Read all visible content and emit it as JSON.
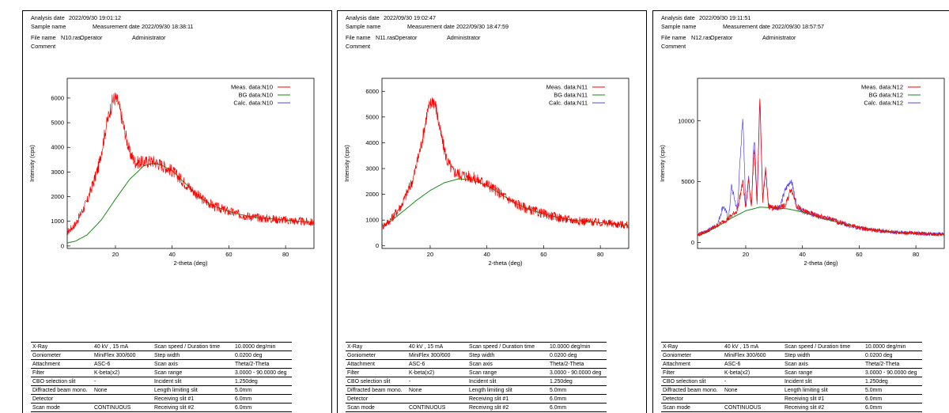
{
  "common": {
    "labels": {
      "analysis_date": "Analysis date",
      "sample_name": "Sample name",
      "measurement_date": "Measurement date",
      "file_name": "File name",
      "operator": "Operator",
      "comment": "Comment"
    },
    "operator": "Administrator",
    "xlabel": "2-theta (deg)",
    "ylabel": "Intensity (cps)",
    "params": [
      [
        "X-Ray",
        "40 kV , 15 mA",
        "Scan speed / Duration time",
        "10.0000 deg/min"
      ],
      [
        "Goniometer",
        "MiniFlex 300/600",
        "Step width",
        "0.0200 deg"
      ],
      [
        "Attachment",
        "ASC-6",
        "Scan axis",
        "Theta/2-Theta"
      ],
      [
        "Filter",
        "K-beta(x2)",
        "Scan range",
        "3.0000 - 90.0000 deg"
      ],
      [
        "CBO selection slit",
        "-",
        "Incident slit",
        "1.250deg"
      ],
      [
        "Diffracted beam mono.",
        "None",
        "Length limiting slit",
        "5.0mm"
      ],
      [
        "Detector",
        "",
        "Receiving slit #1",
        "6.0mm"
      ],
      [
        "Scan mode",
        "CONTINUOUS",
        "Receiving slit #2",
        "6.0mm"
      ]
    ],
    "colors": {
      "meas": "#ff0000",
      "bg": "#1a8a1a",
      "calc": "#5544ee"
    }
  },
  "panels": [
    {
      "analysis_date": "2022/09/30 19:01:12",
      "measurement_date": "2022/09/30 18:38:11",
      "file_name": "N10.ras"
    },
    {
      "analysis_date": "2022/09/30 19:02:47",
      "measurement_date": "2022/09/30 18:47:59",
      "file_name": "N11.ras"
    },
    {
      "analysis_date": "2022/09/30 19:11:51",
      "measurement_date": "2022/09/30 18:57:57",
      "file_name": "N12.ras"
    }
  ],
  "chart_data": [
    {
      "type": "line",
      "xlabel": "2-theta (deg)",
      "ylabel": "Intensity (cps)",
      "xlim": [
        3,
        90
      ],
      "ylim": [
        -100,
        6800
      ],
      "xticks": [
        20,
        40,
        60,
        80
      ],
      "yticks": [
        0,
        1000,
        2000,
        3000,
        4000,
        5000,
        6000
      ],
      "legend_position": "top-right",
      "series": [
        {
          "name": "Meas. data:N10",
          "x": [
            3,
            6,
            10,
            14,
            17,
            19,
            20,
            21,
            23,
            25,
            27,
            30,
            33,
            36,
            40,
            45,
            50,
            55,
            60,
            65,
            70,
            75,
            80,
            85,
            90
          ],
          "values": [
            550,
            900,
            1800,
            3200,
            5000,
            5900,
            6000,
            5800,
            4800,
            3800,
            3400,
            3400,
            3450,
            3300,
            3050,
            2500,
            1950,
            1600,
            1400,
            1250,
            1150,
            1100,
            1050,
            1000,
            950
          ]
        },
        {
          "name": "BG data:N10",
          "x": [
            3,
            6,
            10,
            15,
            20,
            25,
            30,
            33,
            36,
            40,
            45,
            50,
            55,
            60,
            65,
            70,
            75,
            80,
            85,
            90
          ],
          "values": [
            120,
            200,
            450,
            1050,
            1900,
            2700,
            3250,
            3350,
            3300,
            3050,
            2500,
            1950,
            1600,
            1400,
            1250,
            1150,
            1100,
            1050,
            1000,
            950
          ]
        },
        {
          "name": "Calc. data:N10",
          "x": [],
          "values": []
        }
      ]
    },
    {
      "type": "line",
      "xlabel": "2-theta (deg)",
      "ylabel": "Intensity (cps)",
      "xlim": [
        3,
        90
      ],
      "ylim": [
        -100,
        6500
      ],
      "xticks": [
        20,
        40,
        60,
        80
      ],
      "yticks": [
        0,
        1000,
        2000,
        3000,
        4000,
        5000,
        6000
      ],
      "legend_position": "top-right",
      "series": [
        {
          "name": "Meas. data:N11",
          "x": [
            3,
            6,
            10,
            14,
            17,
            19,
            21,
            22,
            24,
            26,
            28,
            30,
            35,
            40,
            45,
            50,
            55,
            60,
            65,
            70,
            75,
            80,
            85,
            90
          ],
          "values": [
            750,
            1000,
            1600,
            2600,
            4000,
            5200,
            5700,
            5400,
            4200,
            3300,
            2900,
            2800,
            2650,
            2400,
            2000,
            1650,
            1400,
            1250,
            1100,
            1000,
            950,
            900,
            850,
            800
          ]
        },
        {
          "name": "BG data:N11",
          "x": [
            3,
            6,
            10,
            15,
            20,
            25,
            30,
            35,
            40,
            45,
            50,
            55,
            60,
            65,
            70,
            75,
            80,
            85,
            90
          ],
          "values": [
            750,
            950,
            1300,
            1750,
            2150,
            2450,
            2600,
            2550,
            2350,
            2000,
            1650,
            1400,
            1250,
            1100,
            1000,
            950,
            900,
            850,
            800
          ]
        },
        {
          "name": "Calc. data:N11",
          "x": [],
          "values": []
        }
      ]
    },
    {
      "type": "line",
      "xlabel": "2-theta (deg)",
      "ylabel": "Intensity (cps)",
      "xlim": [
        3,
        90
      ],
      "ylim": [
        -500,
        13500
      ],
      "xticks": [
        20,
        40,
        60,
        80
      ],
      "yticks": [
        0,
        5000,
        10000
      ],
      "legend_position": "top-right",
      "series": [
        {
          "name": "Meas. data:N12",
          "x": [
            3,
            6,
            10,
            14,
            17,
            19,
            20,
            21,
            22,
            23,
            24,
            25,
            26,
            27,
            28,
            30,
            32,
            34,
            36,
            38,
            40,
            45,
            50,
            55,
            60,
            65,
            70,
            75,
            80,
            85,
            90
          ],
          "values": [
            600,
            900,
            1400,
            2000,
            2600,
            5000,
            2800,
            5200,
            3000,
            8000,
            3200,
            12000,
            3400,
            6000,
            3000,
            2800,
            2900,
            3000,
            4500,
            3000,
            2600,
            2200,
            1900,
            1500,
            1200,
            1000,
            900,
            800,
            750,
            700,
            650
          ]
        },
        {
          "name": "BG data:N12",
          "x": [
            3,
            6,
            10,
            15,
            20,
            25,
            30,
            35,
            40,
            45,
            50,
            55,
            60,
            65,
            70,
            75,
            80,
            85,
            90
          ],
          "values": [
            550,
            800,
            1300,
            2000,
            2600,
            2900,
            2850,
            2750,
            2500,
            2150,
            1800,
            1500,
            1250,
            1050,
            900,
            800,
            750,
            700,
            650
          ]
        },
        {
          "name": "Calc. data:N12",
          "x": [
            3,
            6,
            10,
            12,
            14,
            15,
            17,
            19,
            20,
            21,
            22,
            23,
            24,
            25,
            26,
            27,
            28,
            30,
            32,
            34,
            36,
            38,
            40,
            45,
            50,
            55,
            60,
            65,
            70,
            75,
            80,
            85,
            90
          ],
          "values": [
            600,
            900,
            1400,
            3000,
            2000,
            4600,
            2600,
            10500,
            2800,
            5400,
            3000,
            8800,
            3200,
            11800,
            3400,
            6200,
            3000,
            2800,
            2900,
            4300,
            5200,
            3000,
            2600,
            2200,
            1900,
            1500,
            1200,
            1000,
            900,
            800,
            750,
            700,
            650
          ]
        }
      ]
    }
  ]
}
